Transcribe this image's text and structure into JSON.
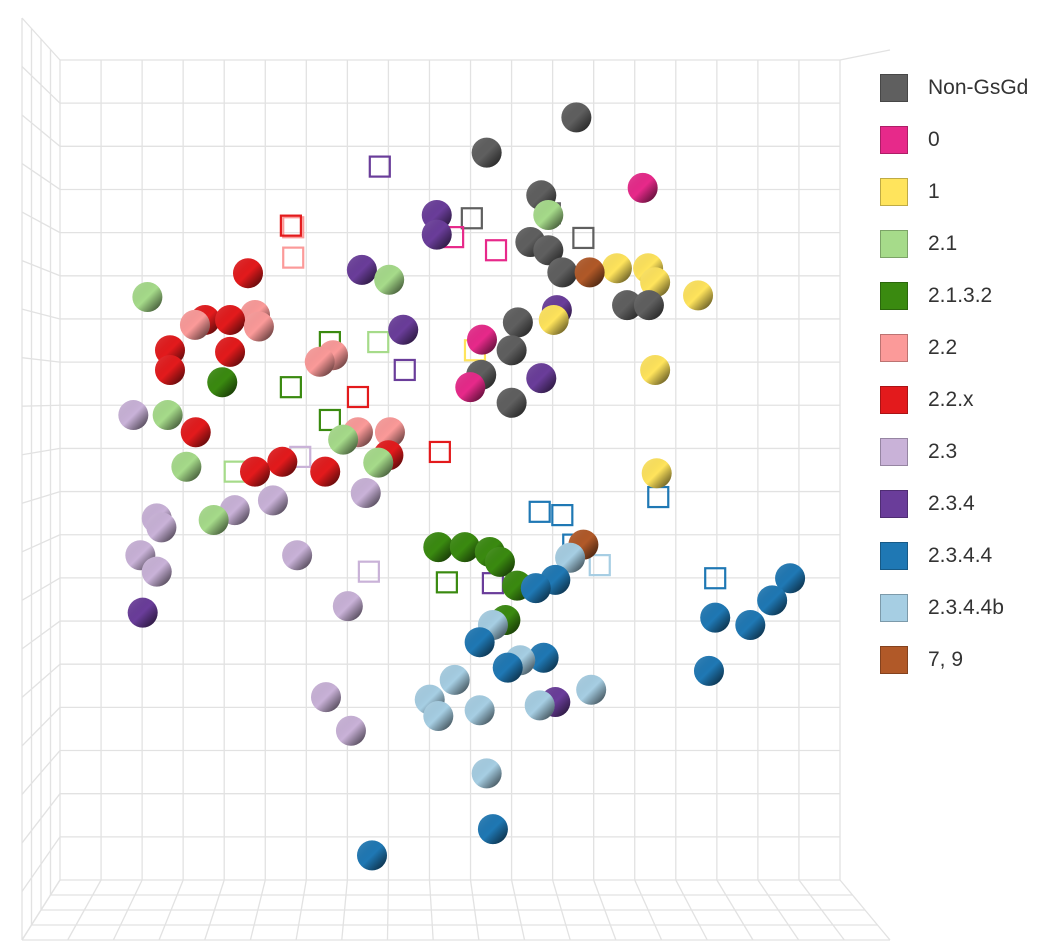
{
  "chart_data": {
    "type": "scatter",
    "title": "",
    "xlabel": "",
    "ylabel": "",
    "xlim": [
      0,
      100
    ],
    "ylim": [
      0,
      100
    ],
    "grid": true,
    "view": "3d-projection",
    "legend_position": "right",
    "marker_note": "spheres = filled points, squares = open square markers",
    "series": [
      {
        "name": "Non-GsGd",
        "color": "#5f5f5f",
        "spheres": [
          [
            66.2,
            93.0
          ],
          [
            54.7,
            88.7
          ],
          [
            61.7,
            83.5
          ],
          [
            60.3,
            77.8
          ],
          [
            62.6,
            76.8
          ],
          [
            64.4,
            74.1
          ],
          [
            72.7,
            70.1
          ],
          [
            75.5,
            70.1
          ],
          [
            58.7,
            68.0
          ],
          [
            57.9,
            64.6
          ],
          [
            54.0,
            61.6
          ],
          [
            57.9,
            58.2
          ]
        ],
        "squares": [
          [
            52.8,
            80.7
          ],
          [
            62.8,
            81.3
          ],
          [
            67.1,
            78.3
          ]
        ]
      },
      {
        "name": "0",
        "color": "#e7298a",
        "spheres": [
          [
            74.7,
            84.4
          ],
          [
            54.1,
            65.9
          ],
          [
            52.6,
            60.1
          ]
        ],
        "squares": [
          [
            50.4,
            78.4
          ],
          [
            55.9,
            76.8
          ]
        ]
      },
      {
        "name": "1",
        "color": "#ffe45c",
        "spheres": [
          [
            71.4,
            74.6
          ],
          [
            75.4,
            74.6
          ],
          [
            76.3,
            72.9
          ],
          [
            81.8,
            71.3
          ],
          [
            63.3,
            68.3
          ],
          [
            76.3,
            62.2
          ],
          [
            76.5,
            49.6
          ]
        ],
        "squares": [
          [
            53.2,
            64.6
          ]
        ]
      },
      {
        "name": "2.1",
        "color": "#a6db8a",
        "spheres": [
          [
            11.2,
            71.1
          ],
          [
            42.2,
            73.2
          ],
          [
            13.8,
            56.7
          ],
          [
            16.2,
            50.4
          ],
          [
            36.3,
            53.7
          ],
          [
            40.8,
            50.9
          ],
          [
            19.7,
            43.9
          ],
          [
            62.6,
            81.1
          ]
        ],
        "squares": [
          [
            40.8,
            65.6
          ],
          [
            22.4,
            49.8
          ]
        ]
      },
      {
        "name": "2.1.3.2",
        "color": "#3a8a10",
        "spheres": [
          [
            20.8,
            60.7
          ],
          [
            48.5,
            40.6
          ],
          [
            51.9,
            40.6
          ],
          [
            55.1,
            40.0
          ],
          [
            56.4,
            38.8
          ],
          [
            58.6,
            35.9
          ],
          [
            57.1,
            31.7
          ]
        ],
        "squares": [
          [
            34.6,
            65.6
          ],
          [
            29.6,
            60.1
          ],
          [
            34.6,
            56.1
          ],
          [
            49.6,
            36.3
          ]
        ]
      },
      {
        "name": "2.2",
        "color": "#fb9a99",
        "spheres": [
          [
            17.3,
            67.7
          ],
          [
            25.0,
            68.9
          ],
          [
            25.5,
            67.5
          ],
          [
            33.3,
            63.2
          ],
          [
            35.0,
            64.0
          ],
          [
            38.2,
            54.6
          ],
          [
            42.3,
            54.6
          ]
        ],
        "squares": [
          [
            29.9,
            79.6
          ],
          [
            29.9,
            75.9
          ]
        ]
      },
      {
        "name": "2.2.x",
        "color": "#e31a1c",
        "spheres": [
          [
            24.1,
            74.0
          ],
          [
            18.6,
            68.3
          ],
          [
            21.8,
            68.3
          ],
          [
            14.1,
            64.6
          ],
          [
            14.1,
            62.2
          ],
          [
            21.8,
            64.4
          ],
          [
            17.4,
            54.6
          ],
          [
            25.0,
            49.8
          ],
          [
            28.5,
            51.0
          ],
          [
            34.0,
            49.8
          ],
          [
            42.1,
            51.8
          ]
        ],
        "squares": [
          [
            29.6,
            79.8
          ],
          [
            38.2,
            58.9
          ],
          [
            48.7,
            52.2
          ]
        ]
      },
      {
        "name": "2.3",
        "color": "#c9b2d8",
        "spheres": [
          [
            9.4,
            56.7
          ],
          [
            12.4,
            44.1
          ],
          [
            13.0,
            43.0
          ],
          [
            10.3,
            39.6
          ],
          [
            12.4,
            37.6
          ],
          [
            22.4,
            45.1
          ],
          [
            27.3,
            46.3
          ],
          [
            39.2,
            47.2
          ],
          [
            30.4,
            39.6
          ],
          [
            36.9,
            33.4
          ],
          [
            34.1,
            22.3
          ],
          [
            37.3,
            18.2
          ]
        ],
        "squares": [
          [
            39.6,
            37.6
          ],
          [
            30.8,
            51.6
          ]
        ]
      },
      {
        "name": "2.3.4",
        "color": "#6a3d9a",
        "spheres": [
          [
            48.3,
            81.1
          ],
          [
            48.3,
            78.7
          ],
          [
            38.7,
            74.4
          ],
          [
            44.0,
            67.1
          ],
          [
            63.7,
            69.5
          ],
          [
            61.7,
            61.2
          ],
          [
            10.6,
            32.6
          ],
          [
            63.5,
            21.7
          ]
        ],
        "squares": [
          [
            41.0,
            87.0
          ],
          [
            44.2,
            62.2
          ],
          [
            55.5,
            36.2
          ]
        ]
      },
      {
        "name": "2.3.4.4",
        "color": "#1f78b4",
        "spheres": [
          [
            93.6,
            36.8
          ],
          [
            91.3,
            34.1
          ],
          [
            88.5,
            31.1
          ],
          [
            84.0,
            32.0
          ],
          [
            83.2,
            25.5
          ],
          [
            61.0,
            35.6
          ],
          [
            63.5,
            36.6
          ],
          [
            53.8,
            29.0
          ],
          [
            62.0,
            27.1
          ],
          [
            57.4,
            25.9
          ],
          [
            55.5,
            6.2
          ],
          [
            40.0,
            3.0
          ]
        ],
        "squares": [
          [
            61.5,
            44.9
          ],
          [
            64.4,
            44.5
          ],
          [
            76.7,
            46.7
          ],
          [
            84.0,
            36.8
          ],
          [
            65.8,
            40.9
          ]
        ]
      },
      {
        "name": "2.3.4.4b",
        "color": "#a6cee3",
        "spheres": [
          [
            65.4,
            39.3
          ],
          [
            55.5,
            31.1
          ],
          [
            59.0,
            26.8
          ],
          [
            50.6,
            24.4
          ],
          [
            47.4,
            22.0
          ],
          [
            48.5,
            20.0
          ],
          [
            53.8,
            20.7
          ],
          [
            61.5,
            21.3
          ],
          [
            68.1,
            23.2
          ],
          [
            54.7,
            13.0
          ]
        ],
        "squares": [
          [
            69.2,
            38.4
          ]
        ]
      },
      {
        "name": "7, 9",
        "color": "#b15928",
        "spheres": [
          [
            67.9,
            74.1
          ],
          [
            67.1,
            40.9
          ]
        ],
        "squares": []
      }
    ]
  }
}
